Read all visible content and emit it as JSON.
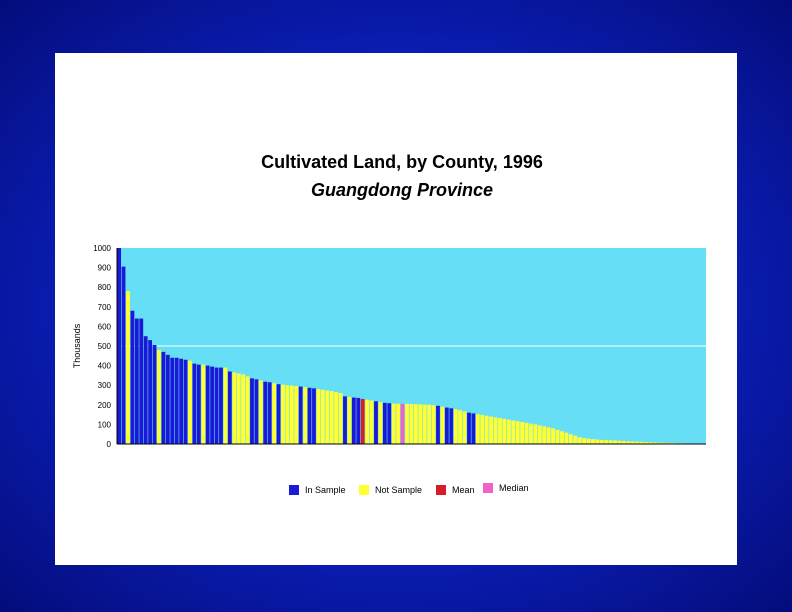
{
  "chart_data": {
    "type": "bar",
    "title": "Cultivated Land, by County, 1996",
    "subtitle": "Guangdong Province",
    "xlabel": "",
    "ylabel": "Thousands",
    "ylim": [
      0,
      1000
    ],
    "yticks": [
      0,
      100,
      200,
      300,
      400,
      500,
      600,
      700,
      800,
      900,
      1000
    ],
    "grid": "horizontal line at 500",
    "plot_background": "#66dff6",
    "legend_position": "bottom",
    "legend": [
      {
        "name": "In Sample",
        "color": "#1a1ad6"
      },
      {
        "name": "Not Sample",
        "color": "#ffff33"
      },
      {
        "name": "Mean",
        "color": "#d41c2c"
      },
      {
        "name": "Median",
        "color": "#f062c8"
      }
    ],
    "values": [
      1000,
      905,
      780,
      680,
      640,
      640,
      550,
      530,
      505,
      480,
      470,
      455,
      440,
      440,
      435,
      430,
      425,
      410,
      405,
      405,
      400,
      395,
      390,
      390,
      390,
      370,
      365,
      360,
      355,
      345,
      335,
      330,
      325,
      318,
      315,
      310,
      305,
      303,
      300,
      298,
      296,
      293,
      290,
      287,
      284,
      280,
      277,
      273,
      270,
      265,
      260,
      243,
      240,
      237,
      235,
      230,
      226,
      222,
      218,
      214,
      210,
      208,
      206,
      205,
      205,
      205,
      204,
      203,
      202,
      201,
      200,
      198,
      195,
      190,
      186,
      182,
      178,
      172,
      166,
      160,
      156,
      152,
      148,
      144,
      140,
      136,
      132,
      128,
      124,
      120,
      116,
      112,
      108,
      104,
      100,
      95,
      90,
      85,
      80,
      72,
      65,
      58,
      50,
      42,
      35,
      30,
      27,
      25,
      23,
      21,
      20,
      19,
      18,
      17,
      15,
      14,
      13,
      12,
      11,
      10,
      9,
      8,
      7,
      6,
      5,
      5,
      4,
      4,
      3,
      3,
      2,
      2,
      2
    ],
    "categories": [
      "S",
      "S",
      "N",
      "S",
      "S",
      "S",
      "S",
      "S",
      "S",
      "N",
      "S",
      "S",
      "S",
      "S",
      "S",
      "S",
      "N",
      "S",
      "S",
      "N",
      "S",
      "S",
      "S",
      "S",
      "N",
      "S",
      "N",
      "N",
      "N",
      "N",
      "S",
      "S",
      "N",
      "S",
      "S",
      "N",
      "S",
      "N",
      "N",
      "N",
      "N",
      "S",
      "N",
      "S",
      "S",
      "N",
      "N",
      "N",
      "N",
      "N",
      "N",
      "S",
      "N",
      "S",
      "S",
      "M",
      "N",
      "N",
      "S",
      "N",
      "S",
      "S",
      "N",
      "N",
      "MD",
      "N",
      "N",
      "N",
      "N",
      "N",
      "N",
      "N",
      "S",
      "N",
      "S",
      "S",
      "N",
      "N",
      "N",
      "S",
      "S",
      "N",
      "N",
      "N",
      "N",
      "N",
      "N",
      "N",
      "N",
      "N",
      "N",
      "N",
      "N",
      "N",
      "N",
      "N",
      "N",
      "N",
      "N",
      "N",
      "N",
      "N",
      "N",
      "N",
      "N",
      "N",
      "N",
      "N",
      "N",
      "N",
      "N",
      "N",
      "N",
      "N",
      "N",
      "N",
      "N",
      "N",
      "N",
      "N",
      "N",
      "N",
      "N",
      "N",
      "N",
      "N",
      "N",
      "N",
      "N",
      "N",
      "N",
      "N",
      "N"
    ]
  }
}
